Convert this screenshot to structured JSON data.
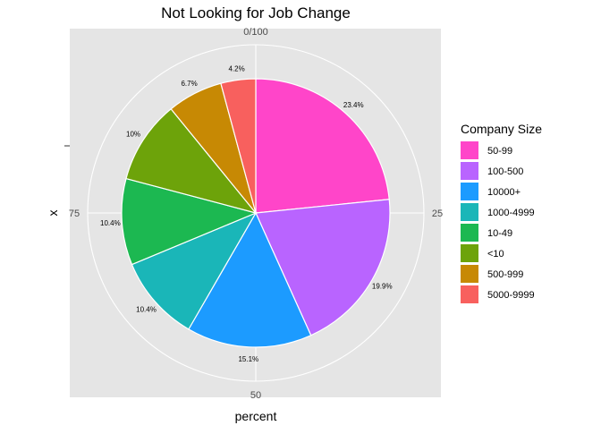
{
  "chart_data": {
    "type": "pie",
    "title": "Not Looking for Job Change",
    "xlabel": "percent",
    "ylabel": "x",
    "y_tick_label": "-",
    "theta_ticks": [
      "0/100",
      "25",
      "50",
      "75"
    ],
    "legend": {
      "title": "Company Size",
      "position": "right"
    },
    "slices": [
      {
        "label": "50-99",
        "value": 23.4,
        "value_label": "23.4%",
        "color": "#FF45C9"
      },
      {
        "label": "100-500",
        "value": 19.9,
        "value_label": "19.9%",
        "color": "#B964FF"
      },
      {
        "label": "10000+",
        "value": 15.1,
        "value_label": "15.1%",
        "color": "#1C9BFF"
      },
      {
        "label": "1000-4999",
        "value": 10.4,
        "value_label": "10.4%",
        "color": "#1AB6B8"
      },
      {
        "label": "10-49",
        "value": 10.4,
        "value_label": "10.4%",
        "color": "#1CB851"
      },
      {
        "label": "<10",
        "value": 10.0,
        "value_label": "10%",
        "color": "#6DA30A"
      },
      {
        "label": "500-999",
        "value": 6.7,
        "value_label": "6.7%",
        "color": "#C78904"
      },
      {
        "label": "5000-9999",
        "value": 4.2,
        "value_label": "4.2%",
        "color": "#F8605E"
      }
    ]
  }
}
